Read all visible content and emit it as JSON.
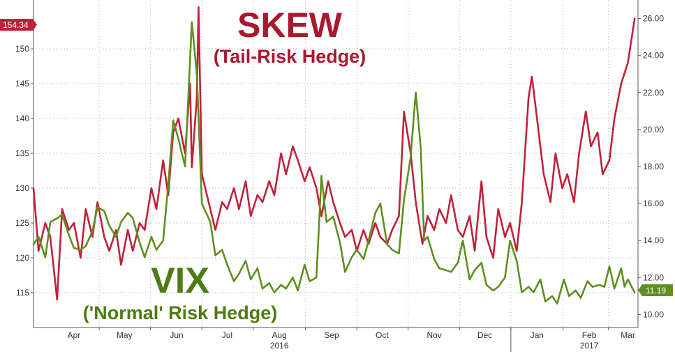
{
  "chart_data": {
    "type": "line",
    "titles": {
      "skew_title": "SKEW",
      "skew_subtitle": "(Tail-Risk Hedge)",
      "vix_title": "VIX",
      "vix_subtitle": "('Normal' Risk Hedge)"
    },
    "last_values": {
      "skew": "154.34",
      "vix": "11.19"
    },
    "left_axis": {
      "ylim": [
        110,
        157
      ],
      "ticks": [
        "115",
        "120",
        "125",
        "130",
        "135",
        "140",
        "145",
        "150"
      ]
    },
    "right_axis": {
      "ylim": [
        9.3,
        27.0
      ],
      "ticks": [
        "10.00",
        "12.00",
        "14.00",
        "16.00",
        "18.00",
        "20.00",
        "22.00",
        "24.00",
        "26.00"
      ]
    },
    "x_axis": {
      "start": "2016-03-22",
      "end": "2017-03-16",
      "months": [
        {
          "label": "Apr",
          "date": "2016-04-15"
        },
        {
          "label": "May",
          "date": "2016-05-15"
        },
        {
          "label": "Jun",
          "date": "2016-06-15"
        },
        {
          "label": "Jul",
          "date": "2016-07-15"
        },
        {
          "label": "Aug",
          "date": "2016-08-15"
        },
        {
          "label": "Sep",
          "date": "2016-09-15"
        },
        {
          "label": "Oct",
          "date": "2016-10-15"
        },
        {
          "label": "Nov",
          "date": "2016-11-15"
        },
        {
          "label": "Dec",
          "date": "2016-12-15"
        },
        {
          "label": "Jan",
          "date": "2017-01-15"
        },
        {
          "label": "Feb",
          "date": "2017-02-15"
        },
        {
          "label": "Mar",
          "date": "2017-03-10"
        }
      ],
      "years": [
        {
          "label": "2016",
          "date": "2016-08-15"
        },
        {
          "label": "2017",
          "date": "2017-02-15"
        }
      ]
    },
    "series": [
      {
        "name": "SKEW",
        "axis": "left",
        "color": "#c0213a",
        "points": [
          [
            "2016-03-22",
            130
          ],
          [
            "2016-03-25",
            121
          ],
          [
            "2016-03-29",
            125
          ],
          [
            "2016-04-01",
            123
          ],
          [
            "2016-04-05",
            114
          ],
          [
            "2016-04-08",
            127
          ],
          [
            "2016-04-12",
            124
          ],
          [
            "2016-04-15",
            125
          ],
          [
            "2016-04-19",
            120
          ],
          [
            "2016-04-22",
            127
          ],
          [
            "2016-04-26",
            123
          ],
          [
            "2016-04-29",
            128
          ],
          [
            "2016-05-03",
            123
          ],
          [
            "2016-05-06",
            121
          ],
          [
            "2016-05-10",
            124
          ],
          [
            "2016-05-13",
            119
          ],
          [
            "2016-05-17",
            124
          ],
          [
            "2016-05-20",
            121
          ],
          [
            "2016-05-24",
            125
          ],
          [
            "2016-05-27",
            124
          ],
          [
            "2016-05-31",
            130
          ],
          [
            "2016-06-03",
            127
          ],
          [
            "2016-06-07",
            134
          ],
          [
            "2016-06-10",
            129
          ],
          [
            "2016-06-13",
            138
          ],
          [
            "2016-06-16",
            140
          ],
          [
            "2016-06-20",
            135
          ],
          [
            "2016-06-23",
            145
          ],
          [
            "2016-06-24",
            133
          ],
          [
            "2016-06-27",
            143
          ],
          [
            "2016-06-28",
            156
          ],
          [
            "2016-06-30",
            132
          ],
          [
            "2016-07-05",
            127
          ],
          [
            "2016-07-08",
            124
          ],
          [
            "2016-07-12",
            128
          ],
          [
            "2016-07-15",
            127
          ],
          [
            "2016-07-19",
            130
          ],
          [
            "2016-07-22",
            127
          ],
          [
            "2016-07-26",
            131
          ],
          [
            "2016-07-29",
            126
          ],
          [
            "2016-08-02",
            129
          ],
          [
            "2016-08-05",
            128
          ],
          [
            "2016-08-09",
            131
          ],
          [
            "2016-08-12",
            129
          ],
          [
            "2016-08-16",
            135
          ],
          [
            "2016-08-19",
            132
          ],
          [
            "2016-08-23",
            136
          ],
          [
            "2016-08-26",
            134
          ],
          [
            "2016-08-30",
            131
          ],
          [
            "2016-09-02",
            133
          ],
          [
            "2016-09-06",
            130
          ],
          [
            "2016-09-09",
            126
          ],
          [
            "2016-09-13",
            131
          ],
          [
            "2016-09-16",
            128
          ],
          [
            "2016-09-20",
            125
          ],
          [
            "2016-09-23",
            123
          ],
          [
            "2016-09-27",
            124
          ],
          [
            "2016-09-30",
            121
          ],
          [
            "2016-10-04",
            124
          ],
          [
            "2016-10-07",
            122
          ],
          [
            "2016-10-11",
            125
          ],
          [
            "2016-10-14",
            123
          ],
          [
            "2016-10-18",
            122
          ],
          [
            "2016-10-21",
            124
          ],
          [
            "2016-10-25",
            126
          ],
          [
            "2016-10-28",
            141
          ],
          [
            "2016-11-01",
            135
          ],
          [
            "2016-11-04",
            128
          ],
          [
            "2016-11-08",
            122
          ],
          [
            "2016-11-11",
            126
          ],
          [
            "2016-11-15",
            124
          ],
          [
            "2016-11-18",
            127
          ],
          [
            "2016-11-22",
            125
          ],
          [
            "2016-11-25",
            129
          ],
          [
            "2016-11-29",
            124
          ],
          [
            "2016-12-02",
            123
          ],
          [
            "2016-12-06",
            126
          ],
          [
            "2016-12-09",
            121
          ],
          [
            "2016-12-13",
            131
          ],
          [
            "2016-12-16",
            123
          ],
          [
            "2016-12-20",
            120
          ],
          [
            "2016-12-23",
            127
          ],
          [
            "2016-12-27",
            123
          ],
          [
            "2016-12-30",
            125
          ],
          [
            "2017-01-03",
            121
          ],
          [
            "2017-01-06",
            128
          ],
          [
            "2017-01-10",
            143
          ],
          [
            "2017-01-12",
            146
          ],
          [
            "2017-01-16",
            138
          ],
          [
            "2017-01-19",
            132
          ],
          [
            "2017-01-23",
            128
          ],
          [
            "2017-01-26",
            135
          ],
          [
            "2017-01-30",
            130
          ],
          [
            "2017-02-02",
            132
          ],
          [
            "2017-02-06",
            128
          ],
          [
            "2017-02-09",
            135
          ],
          [
            "2017-02-13",
            141
          ],
          [
            "2017-02-16",
            136
          ],
          [
            "2017-02-20",
            138
          ],
          [
            "2017-02-23",
            132
          ],
          [
            "2017-02-27",
            134
          ],
          [
            "2017-03-02",
            140
          ],
          [
            "2017-03-06",
            145
          ],
          [
            "2017-03-10",
            148
          ],
          [
            "2017-03-14",
            154.34
          ]
        ]
      },
      {
        "name": "VIX",
        "axis": "right",
        "color": "#5e8f1f",
        "points": [
          [
            "2016-03-22",
            13.8
          ],
          [
            "2016-03-25",
            14.2
          ],
          [
            "2016-03-29",
            13.1
          ],
          [
            "2016-04-01",
            15.0
          ],
          [
            "2016-04-05",
            15.2
          ],
          [
            "2016-04-08",
            15.4
          ],
          [
            "2016-04-12",
            14.3
          ],
          [
            "2016-04-15",
            13.6
          ],
          [
            "2016-04-19",
            13.5
          ],
          [
            "2016-04-22",
            13.7
          ],
          [
            "2016-04-26",
            14.5
          ],
          [
            "2016-04-29",
            15.8
          ],
          [
            "2016-05-03",
            15.6
          ],
          [
            "2016-05-06",
            14.8
          ],
          [
            "2016-05-10",
            14.2
          ],
          [
            "2016-05-13",
            15.0
          ],
          [
            "2016-05-17",
            15.5
          ],
          [
            "2016-05-20",
            15.2
          ],
          [
            "2016-05-24",
            13.9
          ],
          [
            "2016-05-27",
            13.1
          ],
          [
            "2016-05-31",
            14.2
          ],
          [
            "2016-06-03",
            13.5
          ],
          [
            "2016-06-07",
            14.0
          ],
          [
            "2016-06-10",
            17.0
          ],
          [
            "2016-06-13",
            20.5
          ],
          [
            "2016-06-16",
            19.5
          ],
          [
            "2016-06-20",
            18.0
          ],
          [
            "2016-06-24",
            25.8
          ],
          [
            "2016-06-27",
            23.0
          ],
          [
            "2016-06-30",
            16.0
          ],
          [
            "2016-07-05",
            15.0
          ],
          [
            "2016-07-08",
            13.2
          ],
          [
            "2016-07-12",
            13.5
          ],
          [
            "2016-07-15",
            12.7
          ],
          [
            "2016-07-19",
            11.8
          ],
          [
            "2016-07-22",
            12.2
          ],
          [
            "2016-07-26",
            12.9
          ],
          [
            "2016-07-29",
            11.9
          ],
          [
            "2016-08-02",
            12.5
          ],
          [
            "2016-08-05",
            11.4
          ],
          [
            "2016-08-09",
            11.7
          ],
          [
            "2016-08-12",
            11.2
          ],
          [
            "2016-08-16",
            11.6
          ],
          [
            "2016-08-19",
            11.4
          ],
          [
            "2016-08-23",
            12.0
          ],
          [
            "2016-08-26",
            11.3
          ],
          [
            "2016-08-30",
            12.7
          ],
          [
            "2016-09-02",
            11.8
          ],
          [
            "2016-09-06",
            12.0
          ],
          [
            "2016-09-09",
            17.5
          ],
          [
            "2016-09-12",
            15.0
          ],
          [
            "2016-09-16",
            15.3
          ],
          [
            "2016-09-20",
            13.9
          ],
          [
            "2016-09-23",
            12.3
          ],
          [
            "2016-09-27",
            13.1
          ],
          [
            "2016-09-30",
            13.5
          ],
          [
            "2016-10-04",
            13.0
          ],
          [
            "2016-10-07",
            14.0
          ],
          [
            "2016-10-11",
            15.5
          ],
          [
            "2016-10-14",
            16.0
          ],
          [
            "2016-10-18",
            13.8
          ],
          [
            "2016-10-21",
            13.5
          ],
          [
            "2016-10-25",
            13.3
          ],
          [
            "2016-10-28",
            16.2
          ],
          [
            "2016-11-01",
            18.5
          ],
          [
            "2016-11-04",
            22.0
          ],
          [
            "2016-11-07",
            19.0
          ],
          [
            "2016-11-09",
            14.0
          ],
          [
            "2016-11-11",
            14.2
          ],
          [
            "2016-11-15",
            13.0
          ],
          [
            "2016-11-18",
            12.5
          ],
          [
            "2016-11-22",
            12.4
          ],
          [
            "2016-11-25",
            12.3
          ],
          [
            "2016-11-29",
            12.8
          ],
          [
            "2016-12-02",
            14.0
          ],
          [
            "2016-12-06",
            11.9
          ],
          [
            "2016-12-09",
            12.4
          ],
          [
            "2016-12-13",
            12.8
          ],
          [
            "2016-12-16",
            11.6
          ],
          [
            "2016-12-20",
            11.3
          ],
          [
            "2016-12-23",
            11.5
          ],
          [
            "2016-12-27",
            12.0
          ],
          [
            "2016-12-30",
            14.0
          ],
          [
            "2017-01-03",
            12.9
          ],
          [
            "2017-01-06",
            11.2
          ],
          [
            "2017-01-10",
            11.5
          ],
          [
            "2017-01-13",
            11.2
          ],
          [
            "2017-01-17",
            11.9
          ],
          [
            "2017-01-20",
            10.7
          ],
          [
            "2017-01-24",
            11.0
          ],
          [
            "2017-01-27",
            10.6
          ],
          [
            "2017-01-31",
            11.9
          ],
          [
            "2017-02-03",
            11.0
          ],
          [
            "2017-02-07",
            11.3
          ],
          [
            "2017-02-10",
            10.9
          ],
          [
            "2017-02-14",
            11.8
          ],
          [
            "2017-02-17",
            11.5
          ],
          [
            "2017-02-21",
            11.6
          ],
          [
            "2017-02-24",
            11.5
          ],
          [
            "2017-02-27",
            12.6
          ],
          [
            "2017-03-02",
            11.4
          ],
          [
            "2017-03-06",
            12.5
          ],
          [
            "2017-03-08",
            11.5
          ],
          [
            "2017-03-10",
            11.9
          ],
          [
            "2017-03-14",
            11.19
          ]
        ]
      }
    ]
  }
}
